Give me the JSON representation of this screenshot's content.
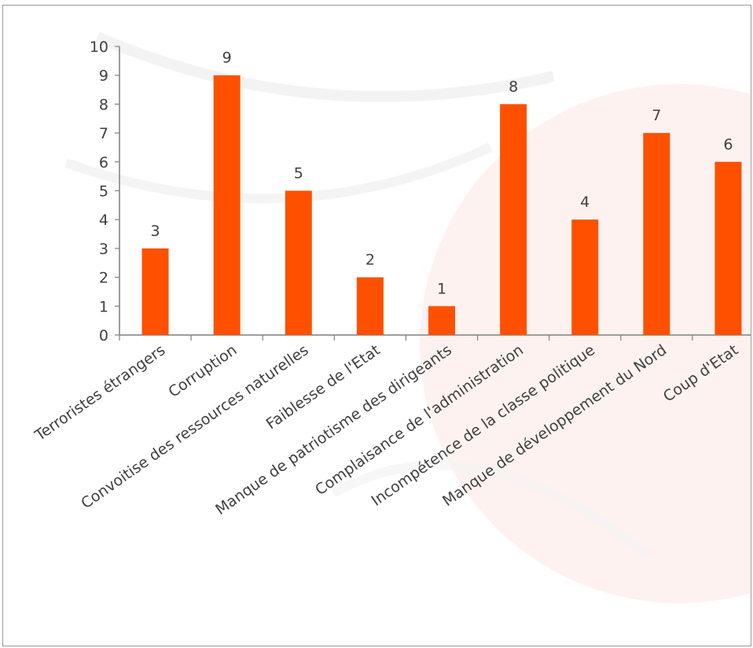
{
  "chart_data": {
    "type": "bar",
    "title": "",
    "xlabel": "",
    "ylabel": "",
    "ylim": [
      0,
      10
    ],
    "yticks": [
      0,
      1,
      2,
      3,
      4,
      5,
      6,
      7,
      8,
      9,
      10
    ],
    "grid": false,
    "legend": "none",
    "categories": [
      "Terroristes étrangers",
      "Corruption",
      "Convoitise des ressources naturelles",
      "Faiblesse de l'Etat",
      "Manque de patriotisme des dirigeants",
      "Complaisance de l'administration",
      "Incompétence de la classe politique",
      "Manque de développement du Nord",
      "Coup d'Etat"
    ],
    "values": [
      3,
      9,
      5,
      2,
      1,
      8,
      4,
      7,
      6
    ],
    "colors": {
      "bar": "#ff5000",
      "axis": "#7f7f7f",
      "text": "#404040",
      "border": "#9a9a9a"
    }
  }
}
